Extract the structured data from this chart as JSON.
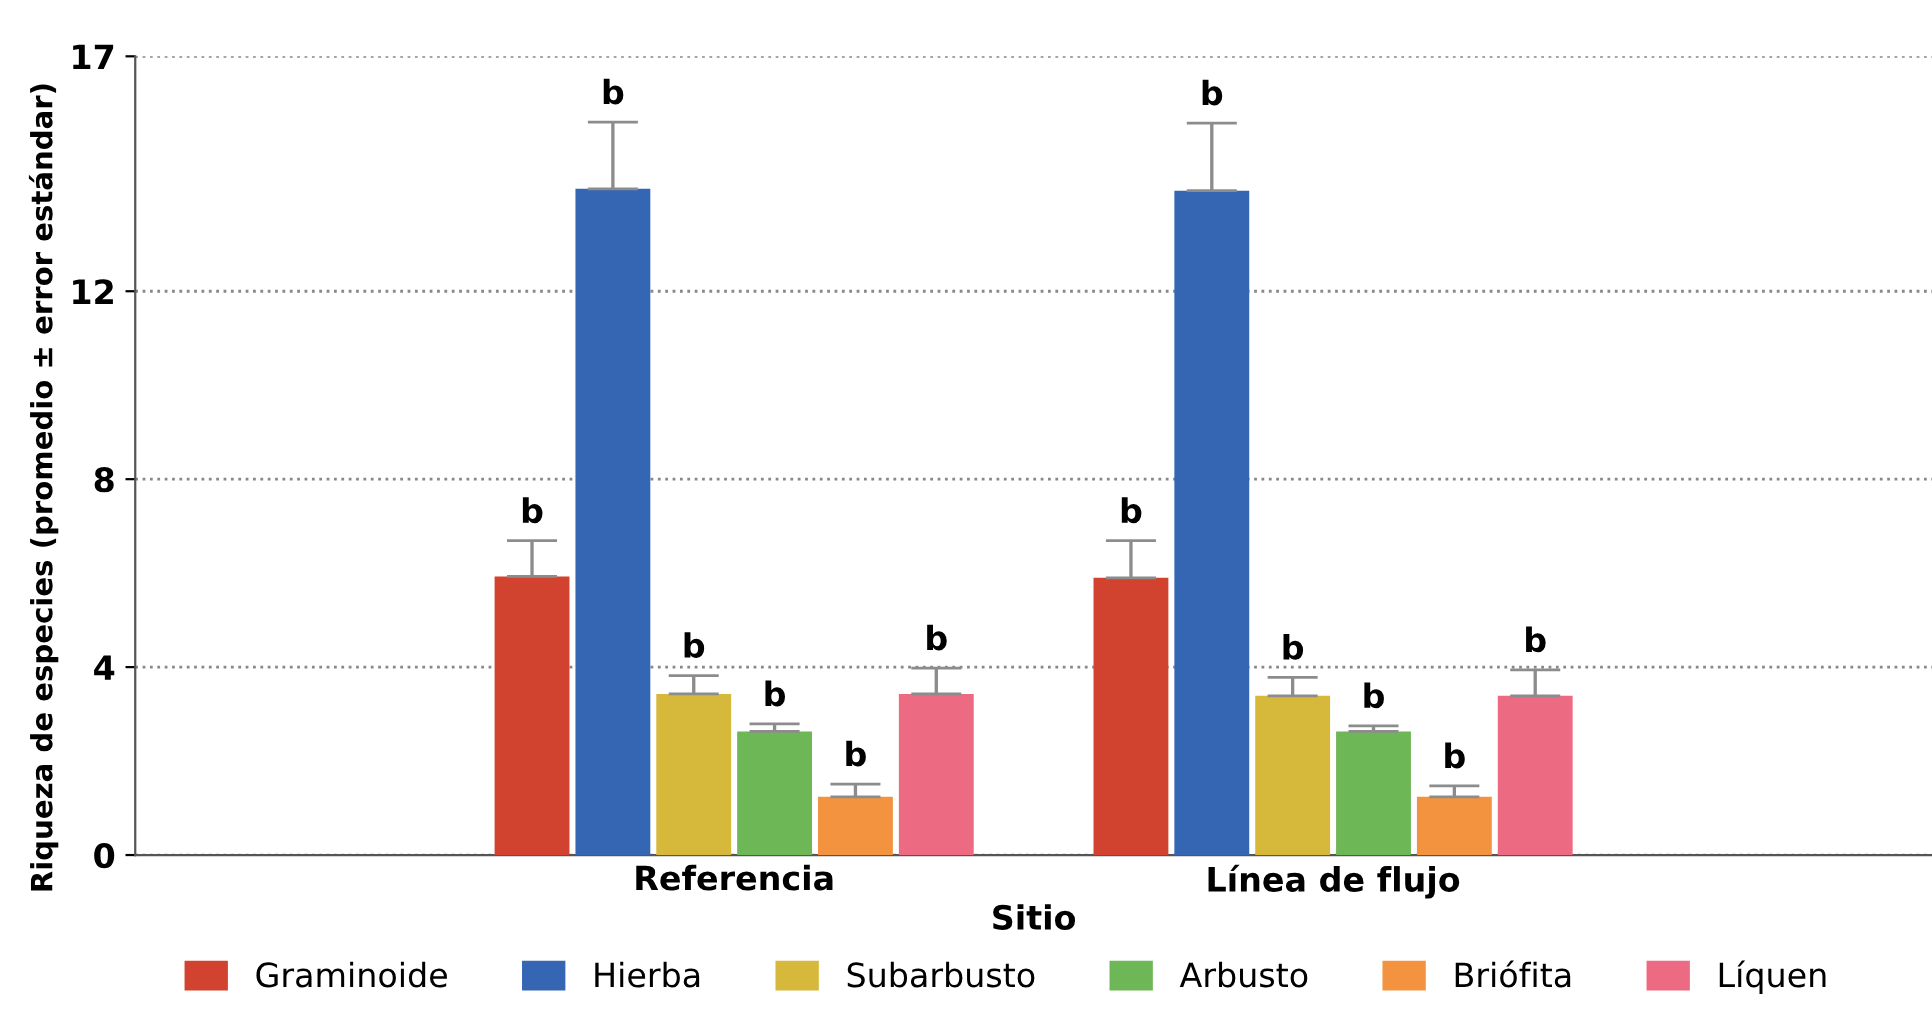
{
  "chart_data": {
    "type": "bar",
    "xlabel": "Sitio",
    "ylabel": "Riqueza de especies (promedio ± error estándar)",
    "categories": [
      "Referencia",
      "Línea de flujo"
    ],
    "series": [
      {
        "name": "Graminoide",
        "color": "#d2432f",
        "values": [
          5.93,
          5.9
        ],
        "errors": [
          [
            5.93,
            6.69
          ],
          [
            5.9,
            6.69
          ]
        ],
        "value_labels": [
          "b",
          "b"
        ]
      },
      {
        "name": "Hierba",
        "color": "#3566b4",
        "values": [
          14.18,
          14.14
        ],
        "errors": [
          [
            14.18,
            15.6
          ],
          [
            14.14,
            15.58
          ]
        ],
        "value_labels": [
          "b",
          "b"
        ]
      },
      {
        "name": "Subarbusto",
        "color": "#d6b83a",
        "values": [
          3.43,
          3.39
        ],
        "errors": [
          [
            3.43,
            3.82
          ],
          [
            3.39,
            3.78
          ]
        ],
        "value_labels": [
          "b",
          "b"
        ]
      },
      {
        "name": "Arbusto",
        "color": "#6db757",
        "values": [
          2.63,
          2.63
        ],
        "errors": [
          [
            2.63,
            2.79
          ],
          [
            2.63,
            2.75
          ]
        ],
        "value_labels": [
          "b",
          "b"
        ]
      },
      {
        "name": "Briófita",
        "color": "#f39340",
        "values": [
          1.24,
          1.24
        ],
        "errors": [
          [
            1.24,
            1.51
          ],
          [
            1.24,
            1.47
          ]
        ],
        "value_labels": [
          "b",
          "b"
        ]
      },
      {
        "name": "Líquen",
        "color": "#ec6a82",
        "values": [
          3.43,
          3.39
        ],
        "errors": [
          [
            3.43,
            3.98
          ],
          [
            3.39,
            3.94
          ]
        ],
        "value_labels": [
          "b",
          "b"
        ]
      }
    ],
    "ylim": [
      0,
      17
    ],
    "yticks": [
      0,
      4,
      8,
      12,
      17
    ],
    "grid": "y",
    "legend": "bottom"
  }
}
